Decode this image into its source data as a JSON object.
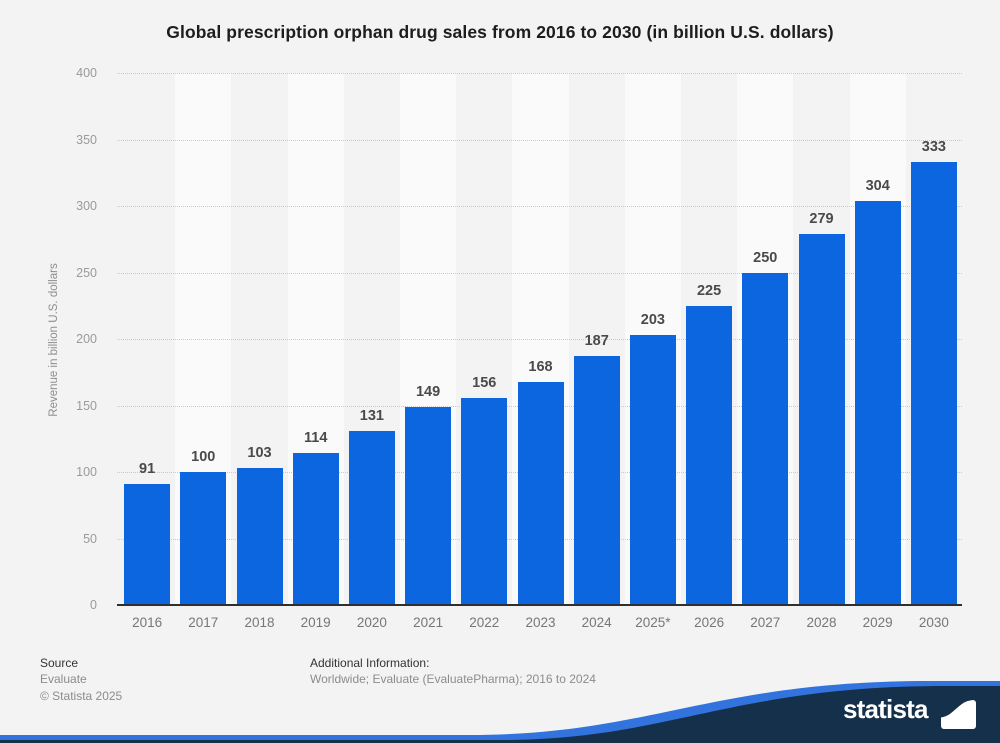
{
  "title": "Global prescription orphan drug sales from 2016 to 2030 (in billion U.S. dollars)",
  "chart_data": {
    "type": "bar",
    "categories": [
      "2016",
      "2017",
      "2018",
      "2019",
      "2020",
      "2021",
      "2022",
      "2023",
      "2024",
      "2025*",
      "2026",
      "2027",
      "2028",
      "2029",
      "2030"
    ],
    "values": [
      91,
      100,
      103,
      114,
      131,
      149,
      156,
      168,
      187,
      203,
      225,
      250,
      279,
      304,
      333
    ],
    "title": "Global prescription orphan drug sales from 2016 to 2030 (in billion U.S. dollars)",
    "xlabel": "",
    "ylabel": "Revenue in billion U.S. dollars",
    "ylim": [
      0,
      400
    ],
    "yticks": [
      0,
      50,
      100,
      150,
      200,
      250,
      300,
      350,
      400
    ],
    "grid": "horizontal-dotted",
    "legend": null,
    "bar_color": "#0b66e0",
    "stripe_color": "#fafafa"
  },
  "footer": {
    "source_label": "Source",
    "source_value": "Evaluate",
    "copyright": "© Statista 2025",
    "additional_label": "Additional Information:",
    "additional_value": "Worldwide; Evaluate (EvaluatePharma); 2016 to 2024"
  },
  "branding": {
    "logo_text": "statista",
    "navy": "#14304a",
    "wave_blue": "#3273de"
  }
}
